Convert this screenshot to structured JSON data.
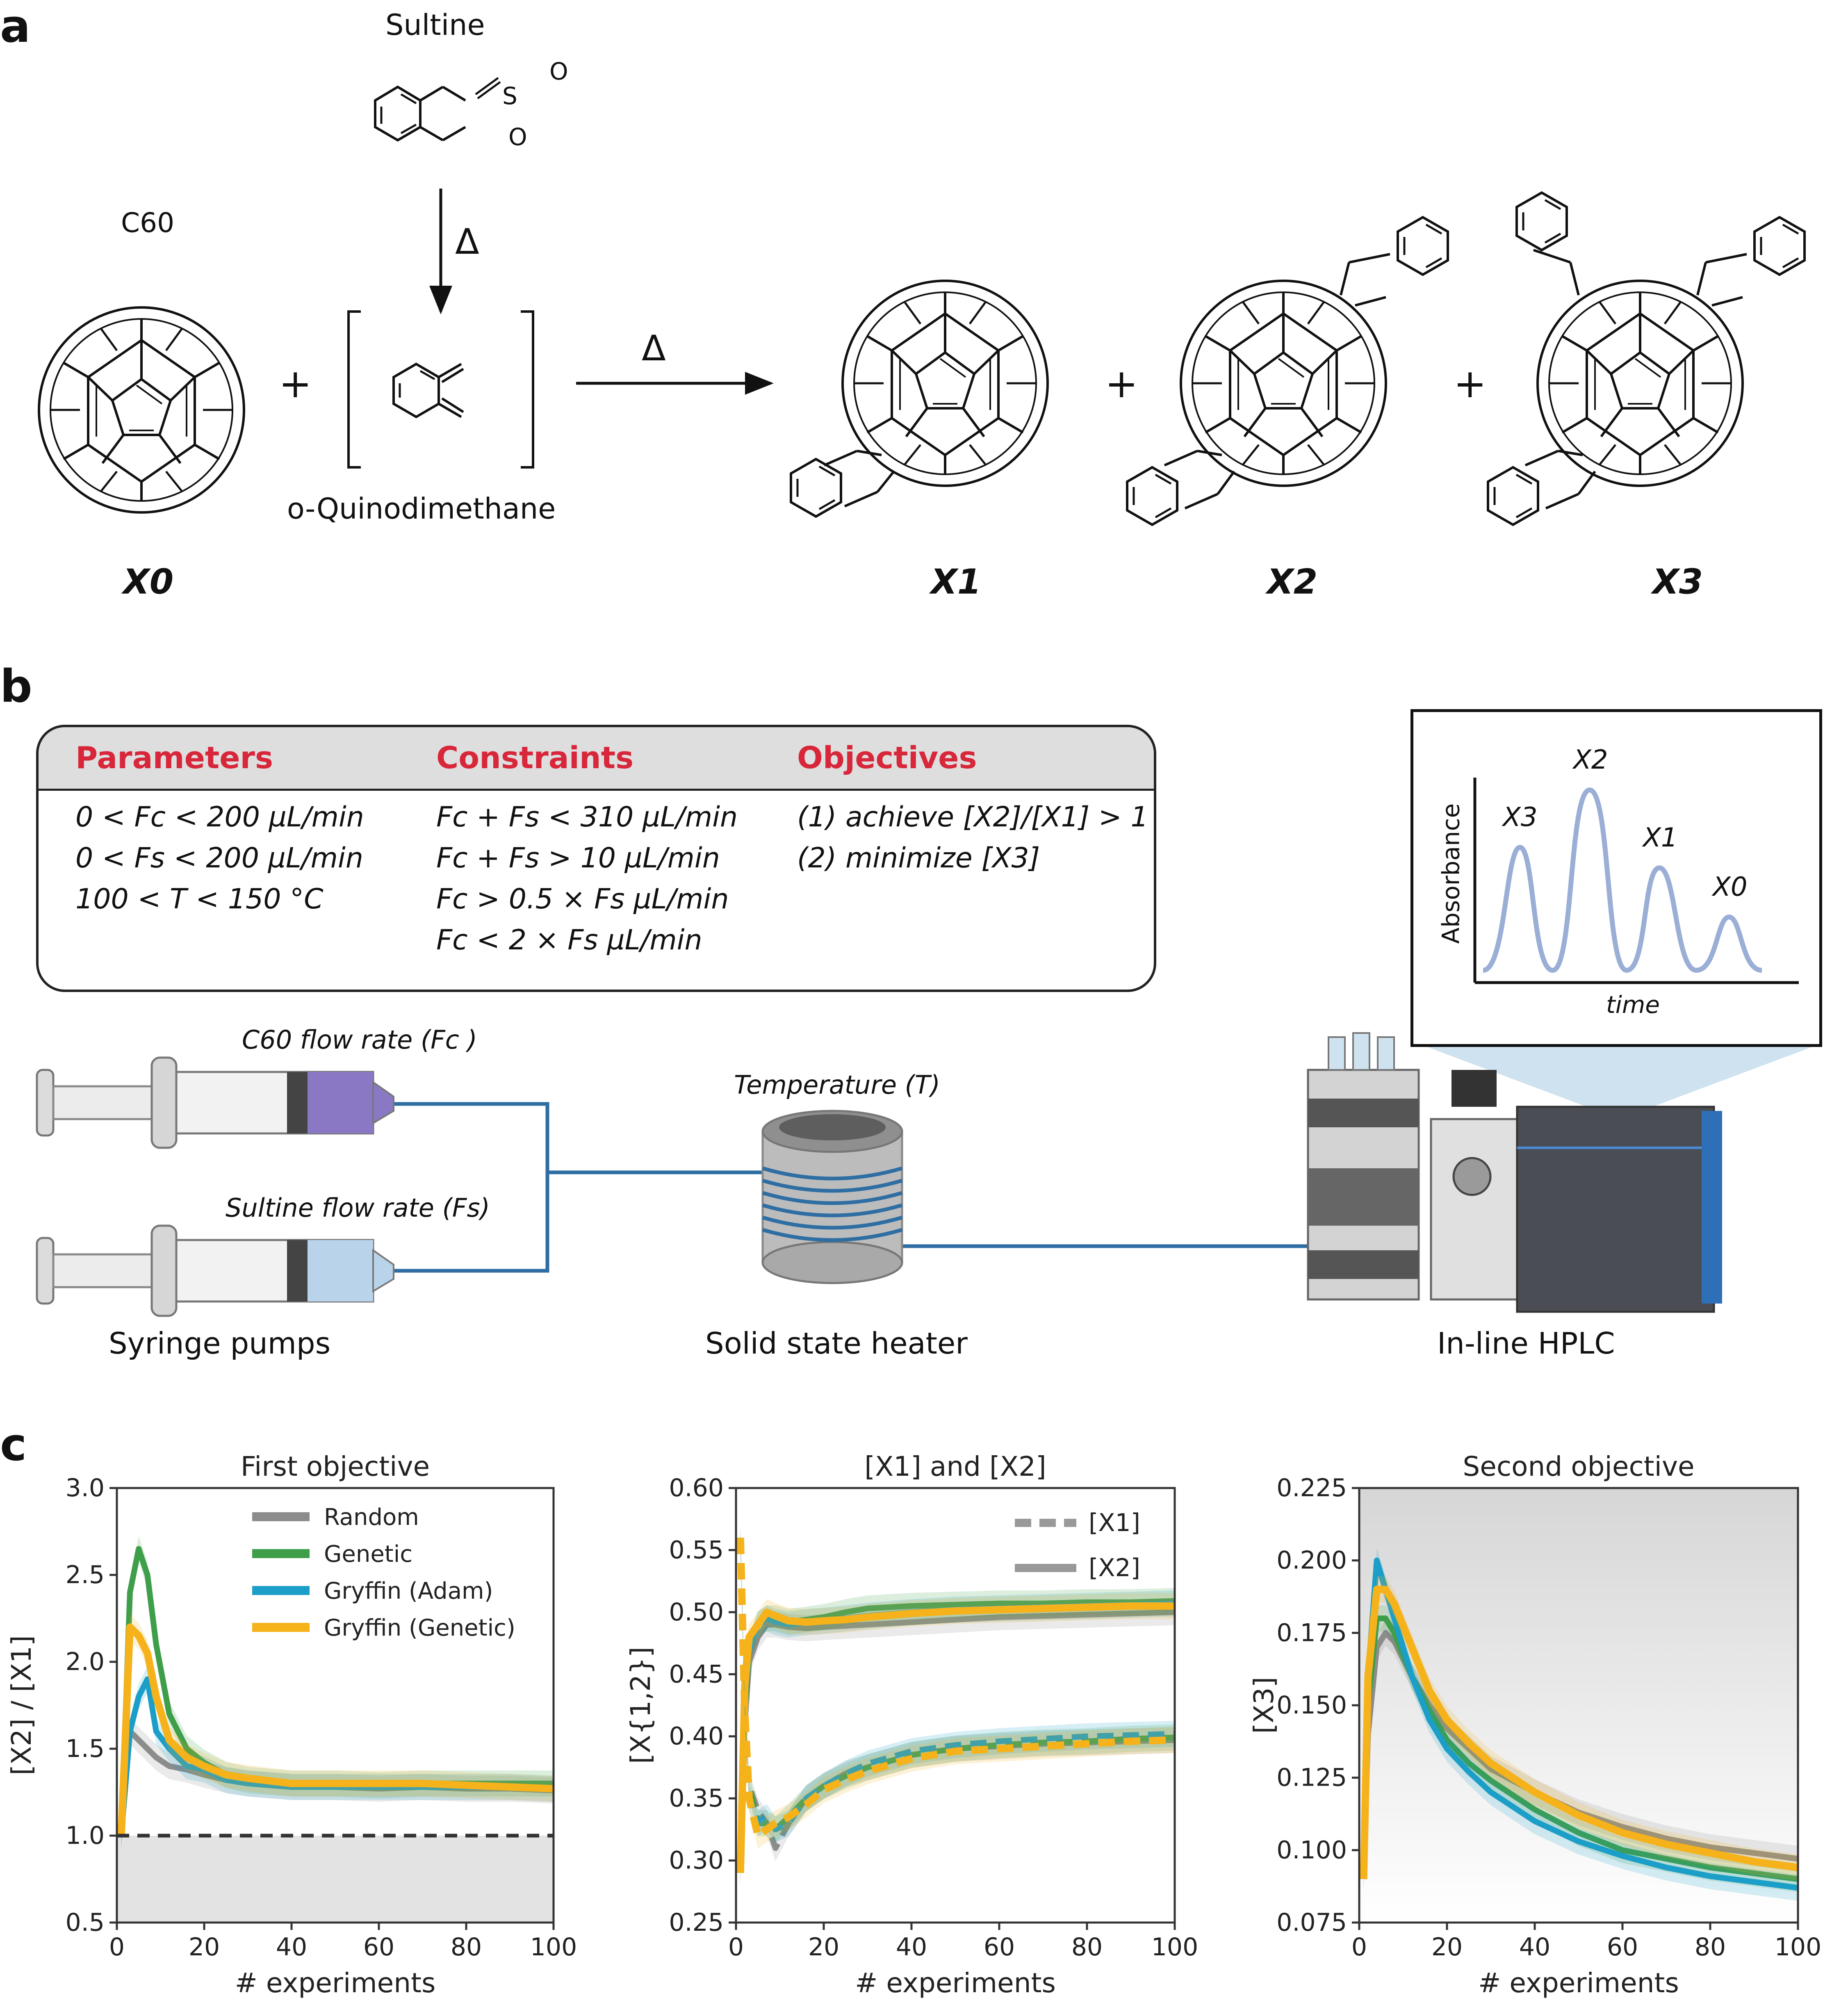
{
  "panel_a": {
    "letter": "a",
    "sultine_label": "Sultine",
    "c60_label": "C60",
    "quino_label": "o-Quinodimethane",
    "delta": "Δ",
    "plus": "+",
    "species": [
      "X0",
      "X1",
      "X2",
      "X3"
    ],
    "atoms": {
      "S": "S",
      "O": "O"
    }
  },
  "panel_b": {
    "letter": "b",
    "headers": {
      "parameters": "Parameters",
      "constraints": "Constraints",
      "objectives": "Objectives"
    },
    "parameters": [
      "0 < Fc < 200  µL/min",
      "0 < Fs < 200  µL/min",
      "100 < T < 150  °C"
    ],
    "constraints": [
      "Fc + Fs < 310  µL/min",
      "Fc + Fs > 10  µL/min",
      "Fc > 0.5 × Fs  µL/min",
      "Fc < 2 × Fs  µL/min"
    ],
    "objectives": [
      "(1) achieve [X2]/[X1] > 1",
      "(2) minimize [X3]"
    ],
    "c60_flow": "C60 flow rate (Fc )",
    "sultine_flow": "Sultine flow rate (Fs)",
    "temperature": "Temperature (T)",
    "syringe_pumps": "Syringe pumps",
    "heater": "Solid state heater",
    "hplc": "In-line HPLC",
    "inset": {
      "ylabel": "Absorbance",
      "xlabel": "time",
      "peaks": [
        "X3",
        "X2",
        "X1",
        "X0"
      ]
    },
    "colors": {
      "c60_liquid": "#8b78c4",
      "sultine_liquid": "#b9d3ea",
      "tubing": "#2f6ea3",
      "peak_line": "#9aaed6"
    }
  },
  "panel_c": {
    "letter": "c",
    "colors": {
      "Random": "#8c8c8c",
      "Genetic": "#3f9e4a",
      "Gryffin (Adam)": "#1b9ec7",
      "Gryffin (Genetic)": "#f5b21b"
    }
  },
  "chart_data": [
    {
      "type": "line",
      "title": "First objective",
      "xlabel": "# experiments",
      "ylabel": "[X2] / [X1]",
      "xlim": [
        0,
        100
      ],
      "ylim": [
        0.5,
        3.0
      ],
      "xticks": [
        "0",
        "20",
        "40",
        "60",
        "80",
        "100"
      ],
      "yticks": [
        "0.5",
        "1.0",
        "1.5",
        "2.0",
        "2.5",
        "3.0"
      ],
      "legend_position": "top-right",
      "reference_line": 1.0,
      "x": [
        1,
        3,
        5,
        7,
        9,
        12,
        16,
        20,
        25,
        30,
        40,
        50,
        60,
        70,
        80,
        90,
        100
      ],
      "series": [
        {
          "name": "Random",
          "values": [
            1.0,
            1.6,
            1.55,
            1.5,
            1.45,
            1.4,
            1.38,
            1.35,
            1.32,
            1.3,
            1.28,
            1.28,
            1.27,
            1.28,
            1.27,
            1.27,
            1.26
          ]
        },
        {
          "name": "Genetic",
          "values": [
            1.0,
            2.4,
            2.65,
            2.5,
            2.1,
            1.7,
            1.5,
            1.42,
            1.35,
            1.32,
            1.3,
            1.3,
            1.29,
            1.3,
            1.3,
            1.3,
            1.3
          ]
        },
        {
          "name": "Gryffin (Adam)",
          "values": [
            1.0,
            1.6,
            1.8,
            1.9,
            1.6,
            1.5,
            1.4,
            1.38,
            1.32,
            1.3,
            1.28,
            1.28,
            1.28,
            1.28,
            1.28,
            1.28,
            1.27
          ]
        },
        {
          "name": "Gryffin (Genetic)",
          "values": [
            1.0,
            2.2,
            2.15,
            2.05,
            1.8,
            1.55,
            1.45,
            1.4,
            1.35,
            1.33,
            1.3,
            1.3,
            1.3,
            1.3,
            1.29,
            1.28,
            1.27
          ]
        }
      ]
    },
    {
      "type": "line",
      "title": "[X1] and [X2]",
      "xlabel": "# experiments",
      "ylabel": "[X{1,2}]",
      "xlim": [
        0,
        100
      ],
      "ylim": [
        0.25,
        0.6
      ],
      "xticks": [
        "0",
        "20",
        "40",
        "60",
        "80",
        "100"
      ],
      "yticks": [
        "0.25",
        "0.30",
        "0.35",
        "0.40",
        "0.45",
        "0.50",
        "0.55",
        "0.60"
      ],
      "legend_position": "top-right",
      "legend": [
        {
          "name": "[X1]",
          "style": "dashed"
        },
        {
          "name": "[X2]",
          "style": "solid"
        }
      ],
      "x": [
        1,
        2,
        3,
        5,
        7,
        9,
        12,
        16,
        20,
        25,
        30,
        40,
        50,
        60,
        70,
        80,
        90,
        100
      ],
      "series": [
        {
          "name": "X2 Random",
          "values": [
            0.29,
            0.41,
            0.46,
            0.48,
            0.49,
            0.49,
            0.488,
            0.487,
            0.488,
            0.489,
            0.49,
            0.492,
            0.494,
            0.496,
            0.497,
            0.498,
            0.499,
            0.5
          ]
        },
        {
          "name": "X2 Genetic",
          "values": [
            0.29,
            0.42,
            0.47,
            0.49,
            0.495,
            0.495,
            0.492,
            0.494,
            0.496,
            0.5,
            0.503,
            0.505,
            0.506,
            0.507,
            0.507,
            0.508,
            0.508,
            0.509
          ]
        },
        {
          "name": "X2 Gryffin (Adam)",
          "values": [
            0.29,
            0.43,
            0.47,
            0.49,
            0.495,
            0.492,
            0.49,
            0.492,
            0.493,
            0.495,
            0.497,
            0.5,
            0.502,
            0.503,
            0.504,
            0.505,
            0.506,
            0.507
          ]
        },
        {
          "name": "X2 Gryffin (Genetic)",
          "values": [
            0.29,
            0.44,
            0.48,
            0.49,
            0.5,
            0.497,
            0.493,
            0.492,
            0.493,
            0.494,
            0.496,
            0.499,
            0.501,
            0.502,
            0.503,
            0.504,
            0.505,
            0.505
          ]
        },
        {
          "name": "X1 Random",
          "values": [
            0.56,
            0.42,
            0.36,
            0.34,
            0.33,
            0.31,
            0.33,
            0.35,
            0.36,
            0.37,
            0.375,
            0.385,
            0.39,
            0.392,
            0.394,
            0.395,
            0.396,
            0.397
          ]
        },
        {
          "name": "X1 Genetic",
          "values": [
            0.56,
            0.42,
            0.36,
            0.33,
            0.33,
            0.325,
            0.335,
            0.35,
            0.36,
            0.368,
            0.375,
            0.385,
            0.39,
            0.393,
            0.395,
            0.396,
            0.398,
            0.399
          ]
        },
        {
          "name": "X1 Gryffin (Adam)",
          "values": [
            0.56,
            0.42,
            0.35,
            0.33,
            0.335,
            0.325,
            0.33,
            0.35,
            0.36,
            0.37,
            0.378,
            0.388,
            0.393,
            0.396,
            0.398,
            0.4,
            0.401,
            0.402
          ]
        },
        {
          "name": "X1 Gryffin (Genetic)",
          "values": [
            0.56,
            0.42,
            0.35,
            0.32,
            0.325,
            0.33,
            0.335,
            0.345,
            0.357,
            0.365,
            0.372,
            0.382,
            0.388,
            0.39,
            0.392,
            0.394,
            0.396,
            0.397
          ]
        }
      ]
    },
    {
      "type": "line",
      "title": "Second objective",
      "xlabel": "# experiments",
      "ylabel": "[X3]",
      "xlim": [
        0,
        100
      ],
      "ylim": [
        0.075,
        0.225
      ],
      "xticks": [
        "0",
        "20",
        "40",
        "60",
        "80",
        "100"
      ],
      "yticks": [
        "0.075",
        "0.100",
        "0.125",
        "0.150",
        "0.175",
        "0.200",
        "0.225"
      ],
      "x": [
        1,
        2,
        4,
        6,
        8,
        12,
        16,
        20,
        25,
        30,
        40,
        50,
        60,
        70,
        80,
        90,
        100
      ],
      "series": [
        {
          "name": "Random",
          "values": [
            0.09,
            0.14,
            0.17,
            0.175,
            0.172,
            0.16,
            0.15,
            0.142,
            0.135,
            0.128,
            0.12,
            0.113,
            0.108,
            0.104,
            0.101,
            0.099,
            0.097
          ]
        },
        {
          "name": "Genetic",
          "values": [
            0.09,
            0.15,
            0.18,
            0.18,
            0.175,
            0.16,
            0.148,
            0.138,
            0.13,
            0.124,
            0.114,
            0.106,
            0.1,
            0.097,
            0.094,
            0.092,
            0.09
          ]
        },
        {
          "name": "Gryffin (Adam)",
          "values": [
            0.09,
            0.16,
            0.2,
            0.19,
            0.18,
            0.16,
            0.145,
            0.135,
            0.127,
            0.12,
            0.11,
            0.103,
            0.098,
            0.094,
            0.091,
            0.089,
            0.087
          ]
        },
        {
          "name": "Gryffin (Genetic)",
          "values": [
            0.09,
            0.16,
            0.19,
            0.19,
            0.185,
            0.17,
            0.155,
            0.145,
            0.137,
            0.13,
            0.12,
            0.112,
            0.106,
            0.102,
            0.099,
            0.096,
            0.094
          ]
        }
      ]
    }
  ]
}
